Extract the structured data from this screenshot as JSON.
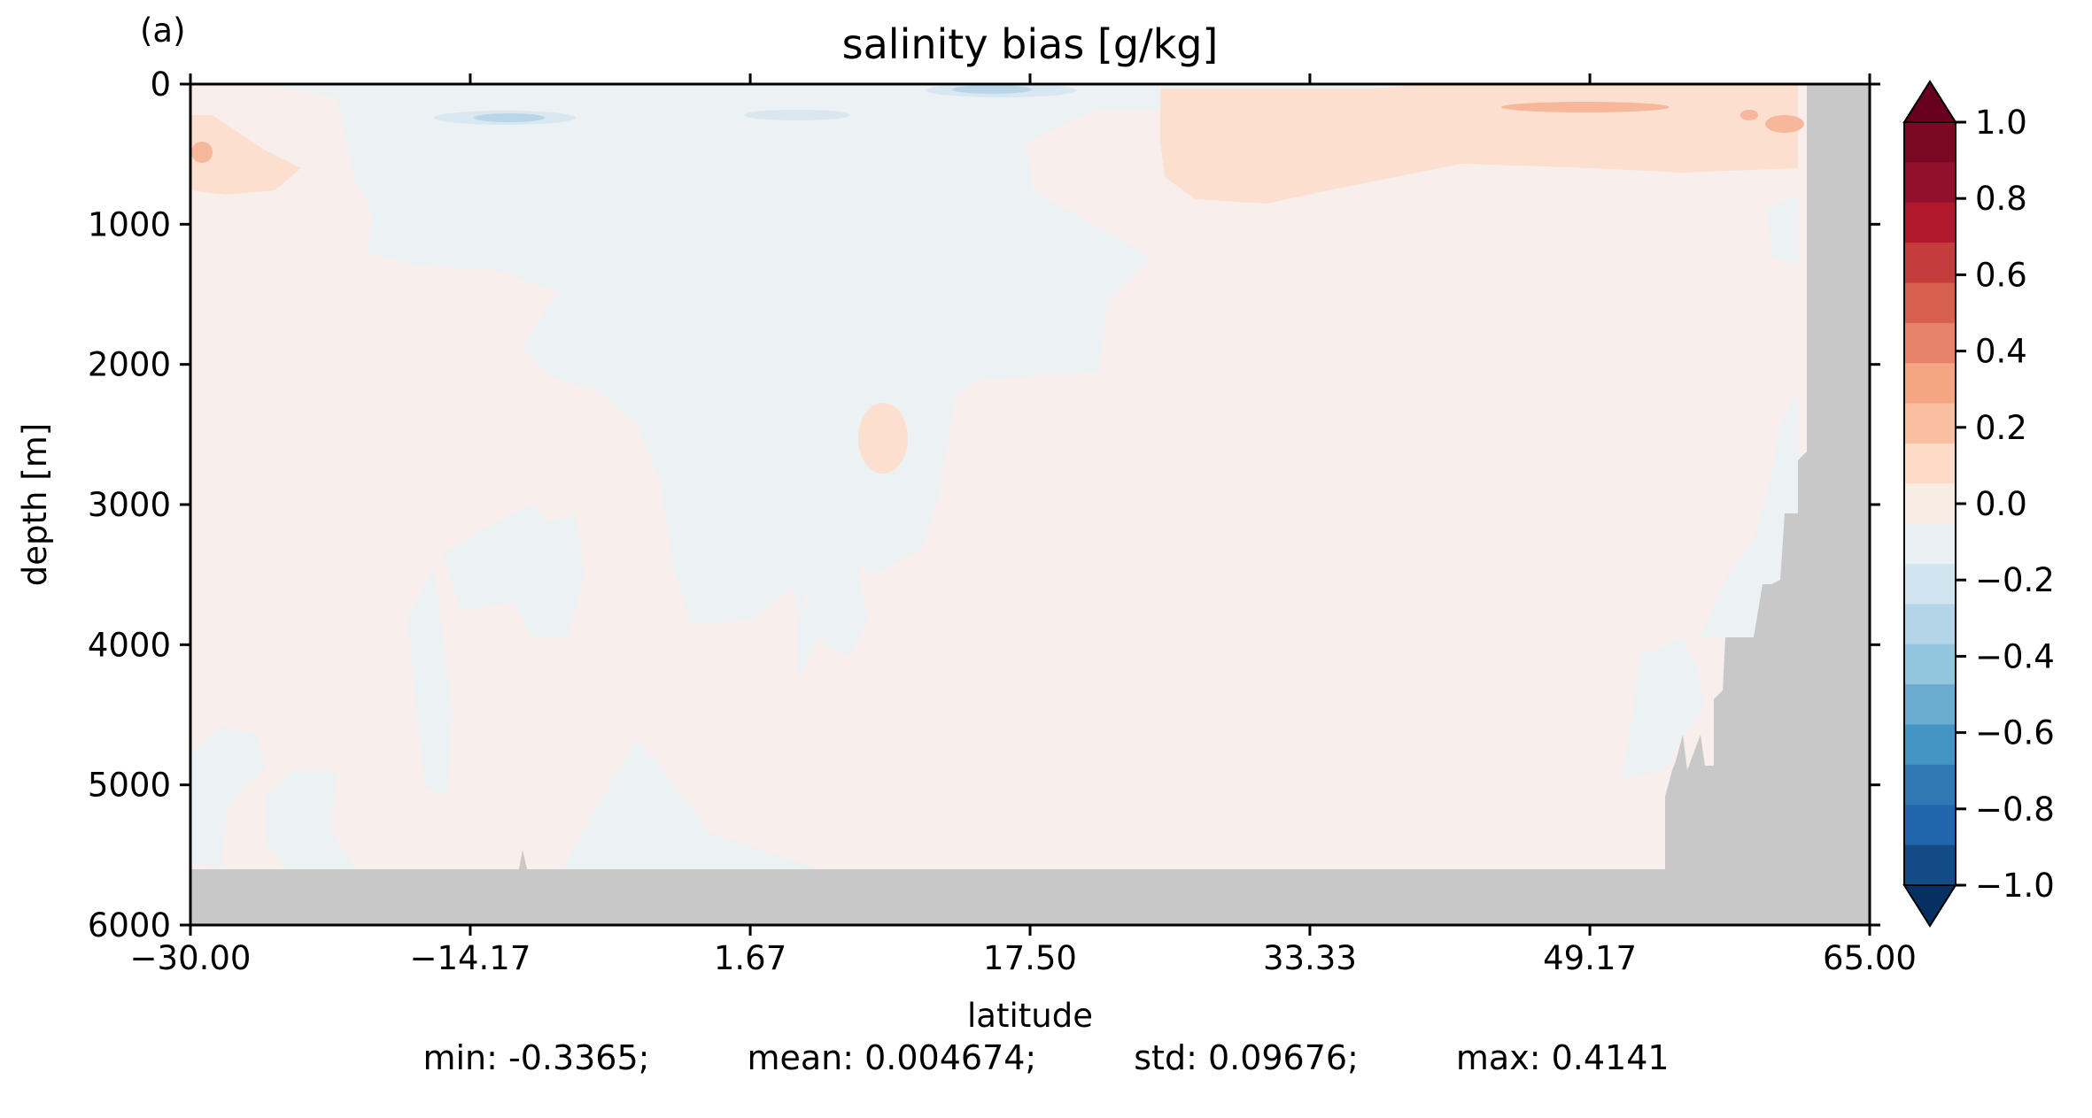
{
  "chart_data": {
    "type": "heatmap",
    "panel_label": "(a)",
    "title": "salinity bias [g/kg]",
    "xlabel": "latitude",
    "ylabel": "depth [m]",
    "xlim": [
      -30.0,
      65.0
    ],
    "ylim": [
      6000,
      0
    ],
    "x_ticks": [
      -30.0,
      -14.17,
      1.67,
      17.5,
      33.33,
      49.17,
      65.0
    ],
    "x_tick_labels": [
      "−30.00",
      "−14.17",
      "1.67",
      "17.50",
      "33.33",
      "49.17",
      "65.00"
    ],
    "y_ticks": [
      0,
      1000,
      2000,
      3000,
      4000,
      5000,
      6000
    ],
    "y_tick_labels": [
      "0",
      "1000",
      "2000",
      "3000",
      "4000",
      "5000",
      "6000"
    ],
    "colorbar": {
      "vmin": -1.0,
      "vmax": 1.0,
      "extend": "both",
      "ticks": [
        1.0,
        0.8,
        0.6,
        0.4,
        0.2,
        0.0,
        -0.2,
        -0.4,
        -0.6,
        -0.8,
        -1.0
      ],
      "tick_labels": [
        "1.0",
        "0.8",
        "0.6",
        "0.4",
        "0.2",
        "0.0",
        "−0.2",
        "−0.4",
        "−0.6",
        "−0.8",
        "−1.0"
      ],
      "levels_top_to_bottom": [
        "#7a0822",
        "#92102b",
        "#b2182b",
        "#c43c3c",
        "#d6604d",
        "#e6836a",
        "#f4a582",
        "#f8bfa0",
        "#fddbc7",
        "#f9ece5",
        "#e9f1f5",
        "#d1e5f0",
        "#b4d5e7",
        "#92c5de",
        "#6aabd0",
        "#4393c3",
        "#2f78b4",
        "#2166ac",
        "#134b87"
      ],
      "extend_top_color": "#67001f",
      "extend_bottom_color": "#053061"
    },
    "background_value_color": "#f8eeeb",
    "bottom_color": "#c8c8c8",
    "features": [
      {
        "name": "upper negative band",
        "sign": "negative",
        "approx_value": -0.1,
        "lat_range": [
          -17,
          29
        ],
        "depth_range": [
          0,
          1300
        ]
      },
      {
        "name": "mid-depth negative tongue",
        "sign": "negative",
        "approx_value": -0.05,
        "lat_range": [
          5,
          22
        ],
        "depth_range": [
          1300,
          3900
        ]
      },
      {
        "name": "northern positive surface layer",
        "sign": "positive",
        "approx_value": 0.2,
        "lat_range": [
          24,
          63
        ],
        "depth_range": [
          0,
          800
        ]
      },
      {
        "name": "max positive core",
        "sign": "positive",
        "approx_value": 0.4,
        "lat_range": [
          50,
          63
        ],
        "depth_range": [
          0,
          300
        ]
      },
      {
        "name": "southern positive lens",
        "sign": "positive",
        "approx_value": 0.15,
        "lat_range": [
          -30,
          -25
        ],
        "depth_range": [
          200,
          800
        ]
      },
      {
        "name": "deep western negative patches",
        "sign": "negative",
        "approx_value": -0.05,
        "lat_range": [
          -30,
          -19
        ],
        "depth_range": [
          3000,
          5600
        ]
      }
    ],
    "stats": {
      "min": "-0.3365",
      "mean": "0.004674",
      "std": "0.09676",
      "max": "0.4141"
    }
  },
  "stats_text": {
    "min": "min: -0.3365;",
    "mean": "mean: 0.004674;",
    "std": "std: 0.09676;",
    "max": "max: 0.4141"
  }
}
